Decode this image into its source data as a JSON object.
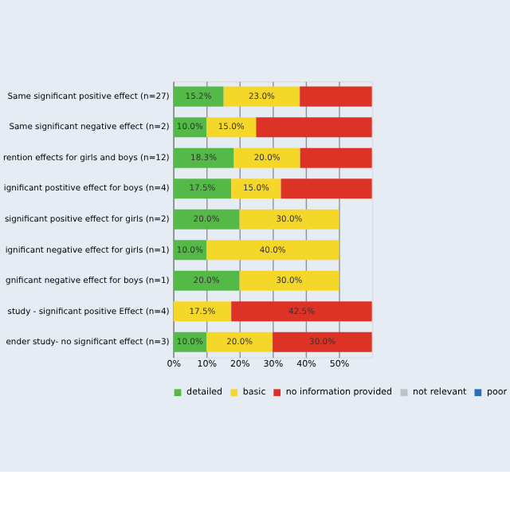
{
  "chart_data": {
    "type": "bar",
    "orientation": "horizontal",
    "stacked": true,
    "categories": [
      "Same significant positive effect (n=27)",
      "Same significant negative effect (n=2)",
      "rention effects for girls and boys (n=12)",
      "ignificant postitive effect for boys (n=4)",
      "significant positive effect for girls (n=2)",
      "ignificant negative effect for girls (n=1)",
      "gnificant negative effect for boys (n=1)",
      "study - significant positive Effect (n=4)",
      "ender study- no significant effect (n=3)"
    ],
    "series": [
      {
        "name": "detailed",
        "color": "#55b948",
        "values": [
          15.2,
          10.0,
          18.3,
          17.5,
          20.0,
          10.0,
          20.0,
          null,
          10.0
        ],
        "value_labels": [
          "15.2%",
          "10.0%",
          "18.3%",
          "17.5%",
          "20.0%",
          "10.0%",
          "20.0%",
          null,
          "10.0%"
        ]
      },
      {
        "name": "basic",
        "color": "#f5d72a",
        "values": [
          23.0,
          15.0,
          20.0,
          15.0,
          30.0,
          40.0,
          30.0,
          17.5,
          20.0
        ],
        "value_labels": [
          "23.0%",
          "15.0%",
          "20.0%",
          "15.0%",
          "30.0%",
          "40.0%",
          "30.0%",
          "17.5%",
          "20.0%"
        ]
      },
      {
        "name": "no information provided",
        "color": "#dd3326",
        "values": [
          21.8,
          35.0,
          21.7,
          27.5,
          null,
          null,
          null,
          42.5,
          30.0
        ],
        "value_labels": [
          null,
          null,
          null,
          null,
          null,
          null,
          null,
          "42.5%",
          "30.0%"
        ]
      },
      {
        "name": "not relevant",
        "color": "#bfc3c8",
        "values": [
          null,
          null,
          null,
          null,
          null,
          null,
          null,
          null,
          null
        ]
      },
      {
        "name": "poor",
        "color": "#2a6fb5",
        "values": [
          null,
          null,
          null,
          null,
          null,
          null,
          null,
          null,
          null
        ]
      }
    ],
    "xlim": [
      0,
      60
    ],
    "xticks": [
      {
        "value": 0,
        "label": "0%"
      },
      {
        "value": 10,
        "label": "10%"
      },
      {
        "value": 20,
        "label": "20%"
      },
      {
        "value": 30,
        "label": "30%"
      },
      {
        "value": 40,
        "label": "40%"
      },
      {
        "value": 50,
        "label": "50%"
      }
    ],
    "grid": "x",
    "legend": "bottom"
  }
}
